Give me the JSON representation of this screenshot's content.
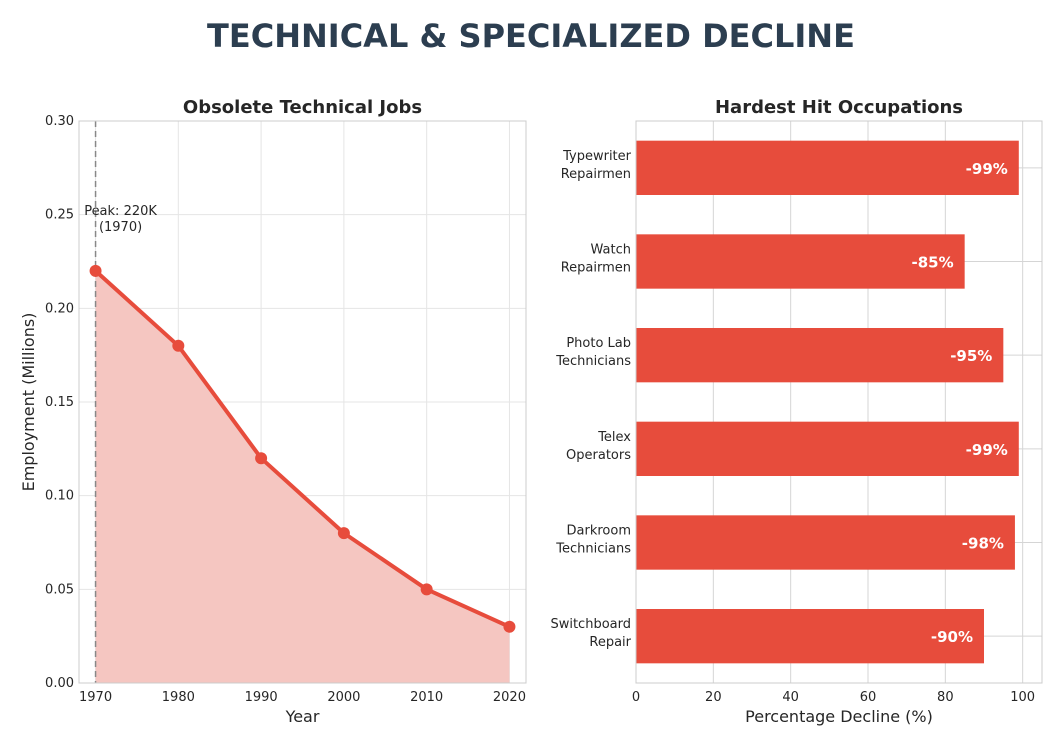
{
  "title": "TECHNICAL & SPECIALIZED DECLINE",
  "colors": {
    "accent": "#e74c3c",
    "fill": "#f5c6c1",
    "title": "#2c3e50",
    "text": "#262626",
    "grid": "#e5e5e5"
  },
  "chart_data": [
    {
      "type": "area",
      "title": "Obsolete Technical Jobs",
      "xlabel": "Year",
      "ylabel": "Employment (Millions)",
      "x": [
        1970,
        1980,
        1990,
        2000,
        2010,
        2020
      ],
      "values": [
        0.22,
        0.18,
        0.12,
        0.08,
        0.05,
        0.03
      ],
      "xlim": [
        1968,
        2022
      ],
      "ylim": [
        0,
        0.3
      ],
      "xticks": [
        "1970",
        "1980",
        "1990",
        "2000",
        "2010",
        "2020"
      ],
      "yticks": [
        "0.00",
        "0.05",
        "0.10",
        "0.15",
        "0.20",
        "0.25",
        "0.30"
      ],
      "annotation": {
        "line1": "Peak: 220K",
        "line2": "(1970)",
        "x": 1970
      },
      "grid": true
    },
    {
      "type": "bar",
      "orientation": "horizontal",
      "title": "Hardest Hit Occupations",
      "xlabel": "Percentage Decline (%)",
      "categories": [
        [
          "Typewriter",
          "Repairmen"
        ],
        [
          "Watch",
          "Repairmen"
        ],
        [
          "Photo Lab",
          "Technicians"
        ],
        [
          "Telex",
          "Operators"
        ],
        [
          "Darkroom",
          "Technicians"
        ],
        [
          "Switchboard",
          "Repair"
        ]
      ],
      "values": [
        99,
        85,
        95,
        99,
        98,
        90
      ],
      "labels": [
        "-99%",
        "-85%",
        "-95%",
        "-99%",
        "-98%",
        "-90%"
      ],
      "xlim": [
        0,
        105
      ],
      "xticks": [
        "0",
        "20",
        "40",
        "60",
        "80",
        "100"
      ],
      "grid": true
    }
  ]
}
